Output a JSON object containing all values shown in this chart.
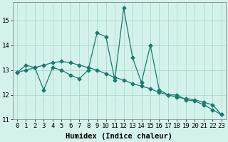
{
  "x": [
    0,
    1,
    2,
    3,
    4,
    5,
    6,
    7,
    8,
    9,
    10,
    11,
    12,
    13,
    14,
    15,
    16,
    17,
    18,
    19,
    20,
    21,
    22,
    23
  ],
  "y_main": [
    12.9,
    13.2,
    13.1,
    12.2,
    13.1,
    13.0,
    12.8,
    12.65,
    13.0,
    14.5,
    14.35,
    12.6,
    15.5,
    13.5,
    12.5,
    14.0,
    12.2,
    12.0,
    12.0,
    11.8,
    11.75,
    11.6,
    11.4,
    11.2
  ],
  "y_trend": [
    12.9,
    13.0,
    13.1,
    13.2,
    13.3,
    13.35,
    13.3,
    13.2,
    13.1,
    13.0,
    12.85,
    12.7,
    12.6,
    12.45,
    12.35,
    12.25,
    12.1,
    12.0,
    11.9,
    11.85,
    11.8,
    11.7,
    11.6,
    11.2
  ],
  "line_color": "#1a7a6e",
  "background_color": "#d4f2ec",
  "grid_color": "#aad8d0",
  "xlabel": "Humidex (Indice chaleur)",
  "xlim": [
    -0.5,
    23.5
  ],
  "ylim": [
    11.0,
    15.75
  ],
  "yticks": [
    11,
    12,
    13,
    14,
    15
  ],
  "xticks": [
    0,
    1,
    2,
    3,
    4,
    5,
    6,
    7,
    8,
    9,
    10,
    11,
    12,
    13,
    14,
    15,
    16,
    17,
    18,
    19,
    20,
    21,
    22,
    23
  ],
  "marker": "D",
  "markersize": 2.5,
  "linewidth": 0.9,
  "xlabel_fontsize": 7.5,
  "tick_fontsize": 6.5
}
